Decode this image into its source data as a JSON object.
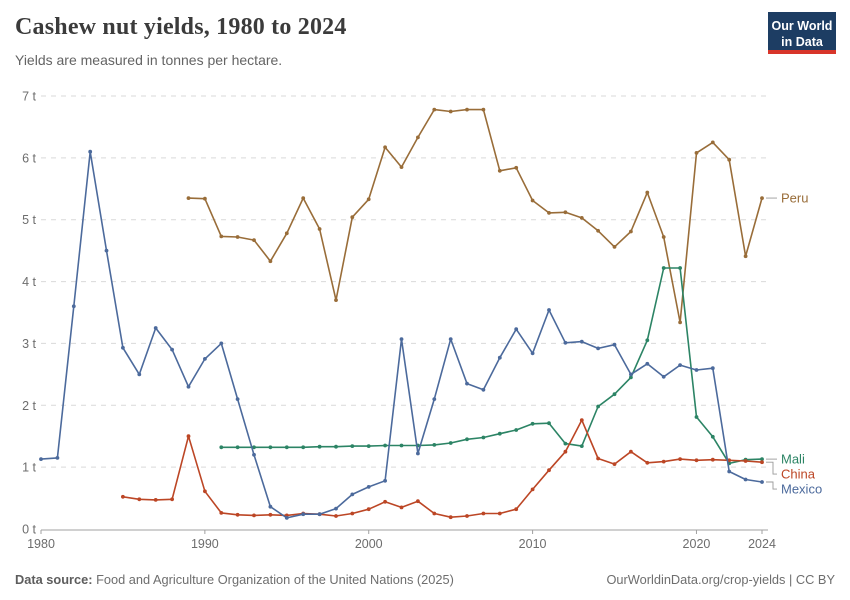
{
  "header": {
    "title": "Cashew nut yields, 1980 to 2024",
    "subtitle": "Yields are measured in tonnes per hectare.",
    "logo": {
      "line1": "Our World",
      "line2": "in Data"
    }
  },
  "footer": {
    "source_label": "Data source:",
    "source_text": " Food and Agriculture Organization of the United Nations (2025)",
    "credit": "OurWorldinData.org/crop-yields | CC BY"
  },
  "colors": {
    "peru": "#996D39",
    "mali": "#2C8465",
    "china": "#BC4625",
    "mexico": "#4C6A9C",
    "grid": "#d9d9d9",
    "axis": "#a0a0a0",
    "leader": "#999999"
  },
  "chart_data": {
    "type": "line",
    "title": "Cashew nut yields, 1980 to 2024",
    "subtitle": "Yields are measured in tonnes per hectare.",
    "xlabel": "",
    "ylabel": "tonnes per hectare",
    "xlim": [
      1980,
      2024
    ],
    "ylim": [
      0,
      7
    ],
    "x_ticks": [
      1980,
      1990,
      2000,
      2010,
      2020,
      2024
    ],
    "y_ticks": [
      0,
      1,
      2,
      3,
      4,
      5,
      6,
      7
    ],
    "y_tick_suffix": " t",
    "grid": "horizontal-dashed",
    "legend_position": "right-end-labels",
    "series": [
      {
        "name": "Peru",
        "color": "#996D39",
        "points": [
          [
            1989,
            5.35
          ],
          [
            1990,
            5.34
          ],
          [
            1991,
            4.73
          ],
          [
            1992,
            4.72
          ],
          [
            1993,
            4.67
          ],
          [
            1994,
            4.33
          ],
          [
            1995,
            4.78
          ],
          [
            1996,
            5.35
          ],
          [
            1997,
            4.85
          ],
          [
            1998,
            3.7
          ],
          [
            1999,
            5.04
          ],
          [
            2000,
            5.33
          ],
          [
            2001,
            6.17
          ],
          [
            2002,
            5.85
          ],
          [
            2003,
            6.33
          ],
          [
            2004,
            6.78
          ],
          [
            2005,
            6.75
          ],
          [
            2006,
            6.78
          ],
          [
            2007,
            6.78
          ],
          [
            2008,
            5.79
          ],
          [
            2009,
            5.84
          ],
          [
            2010,
            5.31
          ],
          [
            2011,
            5.11
          ],
          [
            2012,
            5.12
          ],
          [
            2013,
            5.03
          ],
          [
            2014,
            4.82
          ],
          [
            2015,
            4.56
          ],
          [
            2016,
            4.81
          ],
          [
            2017,
            5.44
          ],
          [
            2018,
            4.72
          ],
          [
            2019,
            3.34
          ],
          [
            2020,
            6.08
          ],
          [
            2021,
            6.25
          ],
          [
            2022,
            5.97
          ],
          [
            2023,
            4.41
          ],
          [
            2024,
            5.35
          ]
        ]
      },
      {
        "name": "Mali",
        "color": "#2C8465",
        "points": [
          [
            1991,
            1.32
          ],
          [
            1992,
            1.32
          ],
          [
            1993,
            1.32
          ],
          [
            1994,
            1.32
          ],
          [
            1995,
            1.32
          ],
          [
            1996,
            1.32
          ],
          [
            1997,
            1.33
          ],
          [
            1998,
            1.33
          ],
          [
            1999,
            1.34
          ],
          [
            2000,
            1.34
          ],
          [
            2001,
            1.35
          ],
          [
            2002,
            1.35
          ],
          [
            2003,
            1.35
          ],
          [
            2004,
            1.36
          ],
          [
            2005,
            1.39
          ],
          [
            2006,
            1.45
          ],
          [
            2007,
            1.48
          ],
          [
            2008,
            1.54
          ],
          [
            2009,
            1.6
          ],
          [
            2010,
            1.7
          ],
          [
            2011,
            1.71
          ],
          [
            2012,
            1.38
          ],
          [
            2013,
            1.34
          ],
          [
            2014,
            1.98
          ],
          [
            2015,
            2.18
          ],
          [
            2016,
            2.45
          ],
          [
            2017,
            3.05
          ],
          [
            2018,
            4.22
          ],
          [
            2019,
            4.22
          ],
          [
            2020,
            1.81
          ],
          [
            2021,
            1.49
          ],
          [
            2022,
            1.06
          ],
          [
            2023,
            1.12
          ],
          [
            2024,
            1.13
          ]
        ]
      },
      {
        "name": "China",
        "color": "#BC4625",
        "points": [
          [
            1985,
            0.52
          ],
          [
            1986,
            0.48
          ],
          [
            1987,
            0.47
          ],
          [
            1988,
            0.48
          ],
          [
            1989,
            1.5
          ],
          [
            1990,
            0.61
          ],
          [
            1991,
            0.26
          ],
          [
            1992,
            0.23
          ],
          [
            1993,
            0.22
          ],
          [
            1994,
            0.23
          ],
          [
            1995,
            0.22
          ],
          [
            1996,
            0.25
          ],
          [
            1997,
            0.24
          ],
          [
            1998,
            0.21
          ],
          [
            1999,
            0.25
          ],
          [
            2000,
            0.32
          ],
          [
            2001,
            0.44
          ],
          [
            2002,
            0.35
          ],
          [
            2003,
            0.45
          ],
          [
            2004,
            0.25
          ],
          [
            2005,
            0.19
          ],
          [
            2006,
            0.21
          ],
          [
            2007,
            0.25
          ],
          [
            2008,
            0.25
          ],
          [
            2009,
            0.32
          ],
          [
            2010,
            0.64
          ],
          [
            2011,
            0.95
          ],
          [
            2012,
            1.25
          ],
          [
            2013,
            1.76
          ],
          [
            2014,
            1.14
          ],
          [
            2015,
            1.05
          ],
          [
            2016,
            1.25
          ],
          [
            2017,
            1.07
          ],
          [
            2018,
            1.09
          ],
          [
            2019,
            1.13
          ],
          [
            2020,
            1.11
          ],
          [
            2021,
            1.12
          ],
          [
            2022,
            1.11
          ],
          [
            2023,
            1.1
          ],
          [
            2024,
            1.08
          ]
        ]
      },
      {
        "name": "Mexico",
        "color": "#4C6A9C",
        "points": [
          [
            1980,
            1.13
          ],
          [
            1981,
            1.15
          ],
          [
            1982,
            3.6
          ],
          [
            1983,
            6.1
          ],
          [
            1984,
            4.5
          ],
          [
            1985,
            2.93
          ],
          [
            1986,
            2.5
          ],
          [
            1987,
            3.25
          ],
          [
            1988,
            2.9
          ],
          [
            1989,
            2.3
          ],
          [
            1990,
            2.75
          ],
          [
            1991,
            3.0
          ],
          [
            1992,
            2.1
          ],
          [
            1993,
            1.2
          ],
          [
            1994,
            0.36
          ],
          [
            1995,
            0.18
          ],
          [
            1996,
            0.24
          ],
          [
            1997,
            0.24
          ],
          [
            1998,
            0.33
          ],
          [
            1999,
            0.56
          ],
          [
            2000,
            0.68
          ],
          [
            2001,
            0.78
          ],
          [
            2002,
            3.07
          ],
          [
            2003,
            1.22
          ],
          [
            2004,
            2.1
          ],
          [
            2005,
            3.07
          ],
          [
            2006,
            2.35
          ],
          [
            2007,
            2.25
          ],
          [
            2008,
            2.77
          ],
          [
            2009,
            3.23
          ],
          [
            2010,
            2.84
          ],
          [
            2011,
            3.54
          ],
          [
            2012,
            3.01
          ],
          [
            2013,
            3.03
          ],
          [
            2014,
            2.92
          ],
          [
            2015,
            2.98
          ],
          [
            2016,
            2.5
          ],
          [
            2017,
            2.67
          ],
          [
            2018,
            2.46
          ],
          [
            2019,
            2.65
          ],
          [
            2020,
            2.57
          ],
          [
            2021,
            2.6
          ],
          [
            2022,
            0.93
          ],
          [
            2023,
            0.8
          ],
          [
            2024,
            0.76
          ]
        ]
      }
    ]
  }
}
